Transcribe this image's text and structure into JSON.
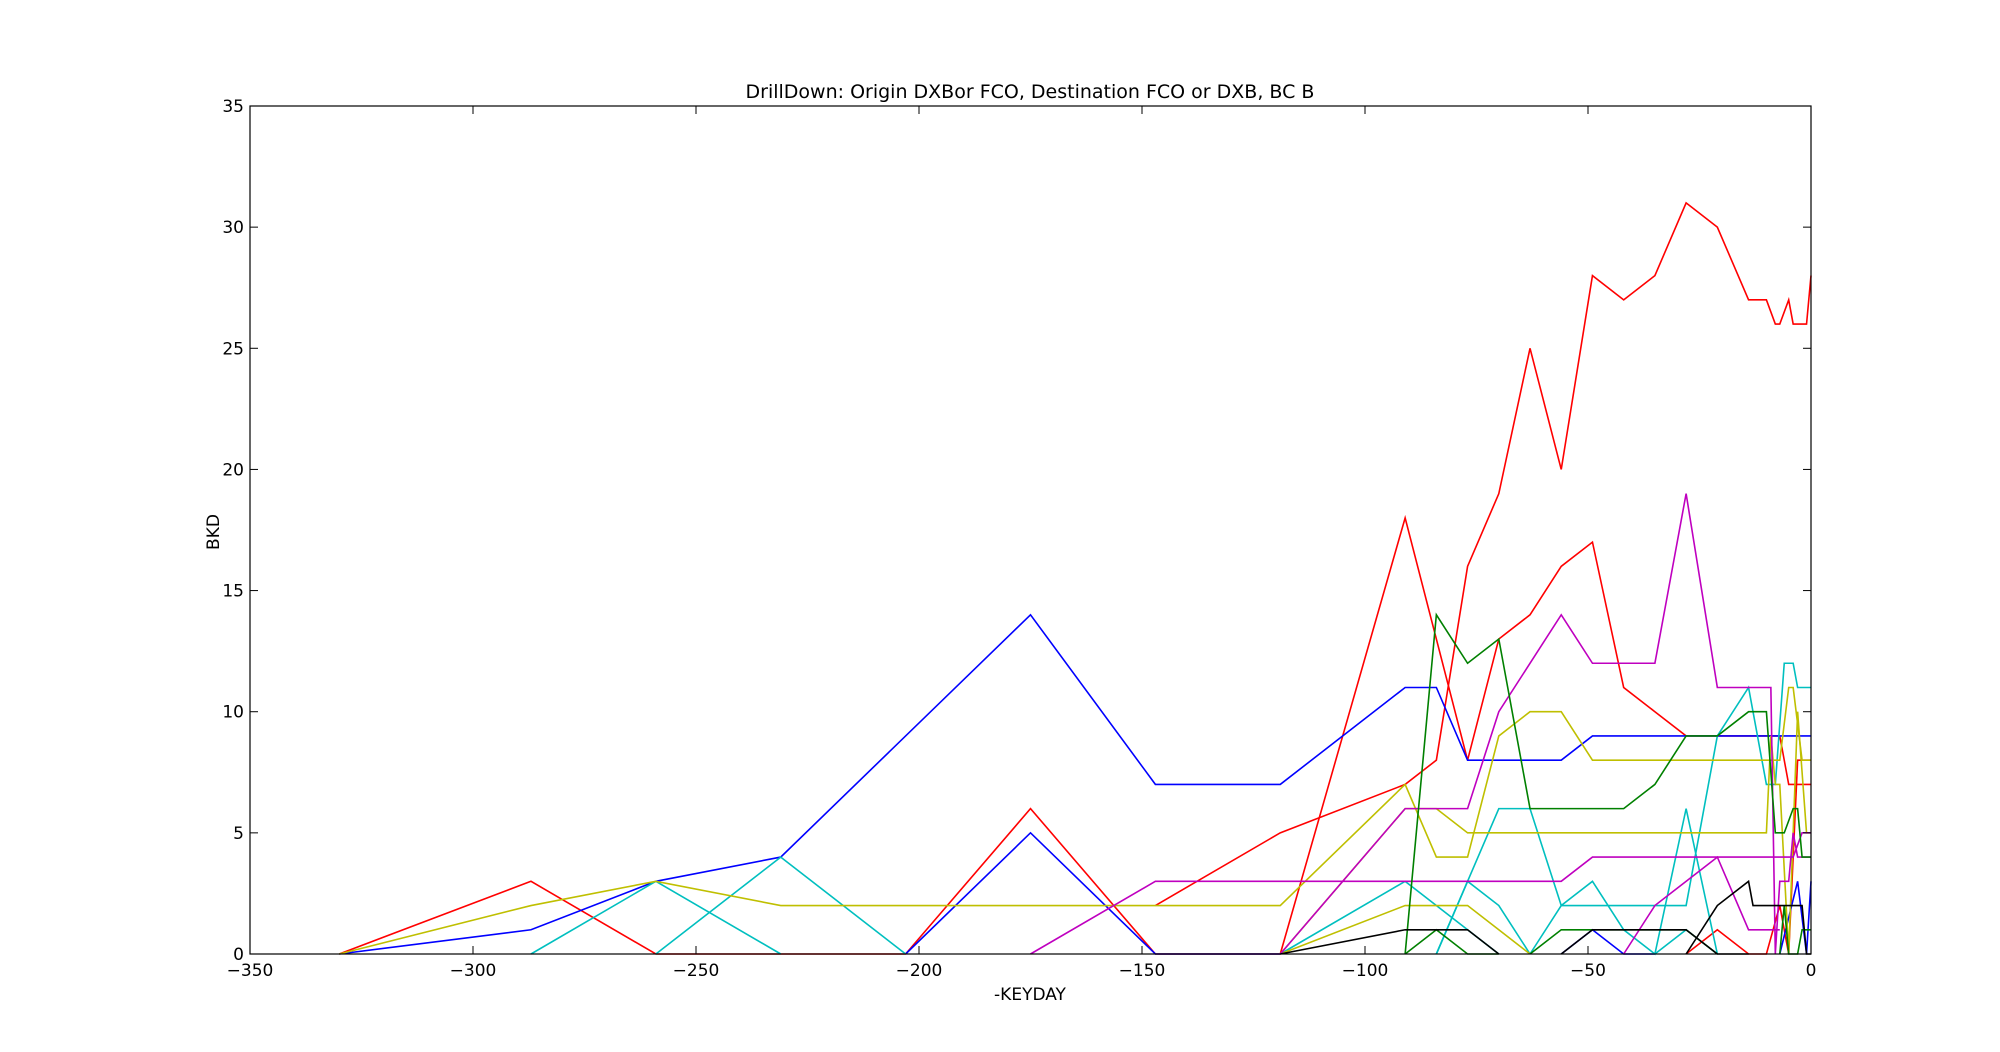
{
  "chart_data": {
    "type": "line",
    "title": "DrillDown: Origin DXBor FCO, Destination FCO or DXB, BC B",
    "xlabel": "-KEYDAY",
    "ylabel": "BKD",
    "xlim": [
      -350,
      0
    ],
    "ylim": [
      0,
      35
    ],
    "grid": false,
    "legend": "none",
    "x_ticks": [
      -350,
      -300,
      -250,
      -200,
      -150,
      -100,
      -50,
      0
    ],
    "y_ticks": [
      0,
      5,
      10,
      15,
      20,
      25,
      30,
      35
    ],
    "x_tick_labels": [
      "−350",
      "−300",
      "−250",
      "−200",
      "−150",
      "−100",
      "−50",
      "0"
    ],
    "y_tick_labels": [
      "0",
      "5",
      "10",
      "15",
      "20",
      "25",
      "30",
      "35"
    ],
    "series": [
      {
        "color": "#ff0000",
        "points": [
          [
            -330,
            0
          ],
          [
            -287,
            3
          ],
          [
            -259,
            0
          ],
          [
            -231,
            0
          ],
          [
            -203,
            0
          ],
          [
            -175,
            6
          ],
          [
            -147,
            0
          ],
          [
            -119,
            0
          ]
        ]
      },
      {
        "color": "#ff0000",
        "points": [
          [
            -147,
            2
          ],
          [
            -119,
            5
          ],
          [
            -91,
            7
          ],
          [
            -84,
            8
          ],
          [
            -77,
            16
          ],
          [
            -70,
            19
          ],
          [
            -63,
            25
          ],
          [
            -56,
            20
          ],
          [
            -49,
            28
          ],
          [
            -42,
            27
          ],
          [
            -35,
            28
          ],
          [
            -28,
            31
          ],
          [
            -21,
            30
          ],
          [
            -14,
            27
          ],
          [
            -10,
            27
          ],
          [
            -8,
            26
          ],
          [
            -7,
            26
          ],
          [
            -5,
            27
          ],
          [
            -4,
            26
          ],
          [
            -1,
            26
          ],
          [
            0,
            28
          ]
        ]
      },
      {
        "color": "#ff0000",
        "points": [
          [
            -119,
            0
          ],
          [
            -91,
            18
          ],
          [
            -77,
            8
          ],
          [
            -70,
            13
          ],
          [
            -63,
            14
          ],
          [
            -56,
            16
          ],
          [
            -49,
            17
          ],
          [
            -42,
            11
          ],
          [
            -35,
            10
          ],
          [
            -28,
            9
          ],
          [
            -14,
            9
          ],
          [
            -7,
            9
          ],
          [
            -5,
            7
          ],
          [
            0,
            7
          ]
        ]
      },
      {
        "color": "#ff0000",
        "points": [
          [
            -28,
            0
          ],
          [
            -21,
            1
          ],
          [
            -14,
            0
          ],
          [
            -10,
            0
          ],
          [
            -7,
            2
          ],
          [
            -5,
            0
          ],
          [
            -3,
            8
          ],
          [
            0,
            8
          ]
        ]
      },
      {
        "color": "#0000ff",
        "points": [
          [
            -330,
            0
          ],
          [
            -287,
            1
          ],
          [
            -259,
            3
          ],
          [
            -231,
            4
          ],
          [
            -175,
            14
          ],
          [
            -147,
            7
          ],
          [
            -119,
            7
          ],
          [
            -91,
            11
          ],
          [
            -84,
            11
          ],
          [
            -77,
            8
          ],
          [
            -70,
            8
          ],
          [
            -63,
            8
          ],
          [
            -56,
            8
          ],
          [
            -49,
            9
          ],
          [
            -28,
            9
          ],
          [
            -14,
            9
          ],
          [
            0,
            9
          ]
        ]
      },
      {
        "color": "#0000ff",
        "points": [
          [
            -203,
            0
          ],
          [
            -175,
            5
          ],
          [
            -147,
            0
          ],
          [
            -119,
            0
          ]
        ]
      },
      {
        "color": "#0000ff",
        "points": [
          [
            -56,
            0
          ],
          [
            -49,
            1
          ],
          [
            -42,
            0
          ],
          [
            -35,
            0
          ]
        ]
      },
      {
        "color": "#0000ff",
        "points": [
          [
            -7,
            0
          ],
          [
            -3,
            3
          ],
          [
            -1,
            0
          ],
          [
            0,
            3
          ]
        ]
      },
      {
        "color": "#00bfbf",
        "points": [
          [
            -287,
            0
          ],
          [
            -259,
            3
          ],
          [
            -231,
            0
          ]
        ]
      },
      {
        "color": "#00bfbf",
        "points": [
          [
            -259,
            0
          ],
          [
            -231,
            4
          ],
          [
            -203,
            0
          ]
        ]
      },
      {
        "color": "#00bfbf",
        "points": [
          [
            -119,
            0
          ],
          [
            -91,
            3
          ],
          [
            -77,
            1
          ],
          [
            -70,
            0
          ]
        ]
      },
      {
        "color": "#00bfbf",
        "points": [
          [
            -84,
            0
          ],
          [
            -77,
            3
          ],
          [
            -70,
            2
          ],
          [
            -63,
            0
          ]
        ]
      },
      {
        "color": "#00bfbf",
        "points": [
          [
            -84,
            0
          ],
          [
            -70,
            6
          ],
          [
            -63,
            6
          ],
          [
            -56,
            2
          ],
          [
            -49,
            3
          ],
          [
            -42,
            1
          ],
          [
            -35,
            0
          ],
          [
            -28,
            6
          ],
          [
            -21,
            0
          ]
        ]
      },
      {
        "color": "#00bfbf",
        "points": [
          [
            -63,
            0
          ],
          [
            -56,
            2
          ],
          [
            -28,
            2
          ],
          [
            -21,
            9
          ],
          [
            -14,
            11
          ],
          [
            -10,
            7
          ],
          [
            -8,
            7
          ],
          [
            -6,
            12
          ],
          [
            -4,
            12
          ],
          [
            -3,
            11
          ],
          [
            0,
            11
          ]
        ]
      },
      {
        "color": "#00bfbf",
        "points": [
          [
            -35,
            0
          ],
          [
            -28,
            1
          ],
          [
            -21,
            0
          ]
        ]
      },
      {
        "color": "#bfbf00",
        "points": [
          [
            -330,
            0
          ],
          [
            -287,
            2
          ],
          [
            -259,
            3
          ],
          [
            -231,
            2
          ],
          [
            -203,
            2
          ],
          [
            -175,
            2
          ],
          [
            -147,
            2
          ],
          [
            -119,
            2
          ],
          [
            -91,
            7
          ],
          [
            -84,
            4
          ],
          [
            -77,
            4
          ],
          [
            -70,
            9
          ],
          [
            -63,
            10
          ],
          [
            -56,
            10
          ],
          [
            -49,
            8
          ],
          [
            -28,
            8
          ],
          [
            -14,
            8
          ],
          [
            -7,
            8
          ],
          [
            -5,
            11
          ],
          [
            -4,
            11
          ],
          [
            -2,
            8
          ],
          [
            0,
            8
          ]
        ]
      },
      {
        "color": "#bfbf00",
        "points": [
          [
            -119,
            0
          ],
          [
            -91,
            6
          ],
          [
            -84,
            6
          ],
          [
            -77,
            5
          ],
          [
            -56,
            5
          ],
          [
            -35,
            5
          ],
          [
            -21,
            5
          ],
          [
            -14,
            5
          ],
          [
            -10,
            5
          ],
          [
            -9,
            9
          ],
          [
            -8,
            7
          ],
          [
            -7,
            7
          ],
          [
            -5,
            0
          ],
          [
            -3,
            10
          ],
          [
            -1,
            5
          ],
          [
            0,
            5
          ]
        ]
      },
      {
        "color": "#bfbf00",
        "points": [
          [
            -119,
            0
          ],
          [
            -91,
            2
          ],
          [
            -77,
            2
          ],
          [
            -70,
            1
          ],
          [
            -63,
            0
          ]
        ]
      },
      {
        "color": "#bf00bf",
        "points": [
          [
            -175,
            0
          ],
          [
            -147,
            3
          ],
          [
            -119,
            3
          ],
          [
            -91,
            3
          ],
          [
            -70,
            3
          ],
          [
            -56,
            3
          ],
          [
            -49,
            4
          ],
          [
            -28,
            4
          ],
          [
            -14,
            4
          ],
          [
            -8,
            4
          ],
          [
            -6,
            4
          ],
          [
            -4,
            4
          ],
          [
            -2,
            5
          ],
          [
            0,
            5
          ]
        ]
      },
      {
        "color": "#bf00bf",
        "points": [
          [
            -119,
            0
          ],
          [
            -91,
            6
          ],
          [
            -77,
            6
          ],
          [
            -70,
            10
          ],
          [
            -56,
            14
          ],
          [
            -49,
            12
          ],
          [
            -35,
            12
          ],
          [
            -28,
            19
          ],
          [
            -21,
            11
          ],
          [
            -14,
            11
          ],
          [
            -9,
            11
          ],
          [
            -8,
            0
          ],
          [
            -7,
            3
          ],
          [
            -5,
            3
          ],
          [
            -4,
            5
          ],
          [
            -3,
            4
          ],
          [
            0,
            4
          ]
        ]
      },
      {
        "color": "#bf00bf",
        "points": [
          [
            -42,
            0
          ],
          [
            -35,
            2
          ],
          [
            -21,
            4
          ],
          [
            -14,
            1
          ],
          [
            -7,
            1
          ]
        ]
      },
      {
        "color": "#008000",
        "points": [
          [
            -91,
            0
          ],
          [
            -84,
            14
          ],
          [
            -77,
            12
          ],
          [
            -70,
            13
          ],
          [
            -63,
            6
          ],
          [
            -56,
            6
          ],
          [
            -42,
            6
          ],
          [
            -35,
            7
          ],
          [
            -28,
            9
          ],
          [
            -21,
            9
          ],
          [
            -14,
            10
          ],
          [
            -10,
            10
          ],
          [
            -8,
            5
          ],
          [
            -6,
            5
          ],
          [
            -4,
            6
          ],
          [
            -3,
            6
          ],
          [
            -2,
            4
          ],
          [
            0,
            4
          ]
        ]
      },
      {
        "color": "#008000",
        "points": [
          [
            -91,
            0
          ],
          [
            -84,
            1
          ],
          [
            -77,
            0
          ],
          [
            -70,
            0
          ]
        ]
      },
      {
        "color": "#008000",
        "points": [
          [
            -63,
            0
          ],
          [
            -56,
            1
          ],
          [
            -35,
            1
          ],
          [
            -28,
            1
          ],
          [
            -21,
            0
          ]
        ]
      },
      {
        "color": "#008000",
        "points": [
          [
            -7,
            0
          ],
          [
            -6,
            2
          ],
          [
            -5,
            0
          ],
          [
            -3,
            0
          ],
          [
            -2,
            1
          ],
          [
            0,
            1
          ]
        ]
      },
      {
        "color": "#000000",
        "points": [
          [
            -119,
            0
          ],
          [
            -91,
            1
          ],
          [
            -77,
            1
          ],
          [
            -70,
            0
          ]
        ]
      },
      {
        "color": "#000000",
        "points": [
          [
            -56,
            0
          ],
          [
            -49,
            1
          ],
          [
            -28,
            1
          ],
          [
            -21,
            0
          ],
          [
            -14,
            0
          ]
        ]
      },
      {
        "color": "#000000",
        "points": [
          [
            -28,
            0
          ],
          [
            -21,
            2
          ],
          [
            -14,
            3
          ],
          [
            -13,
            2
          ],
          [
            -7,
            2
          ],
          [
            -2,
            2
          ],
          [
            -1,
            0
          ],
          [
            0,
            0
          ]
        ]
      }
    ]
  }
}
